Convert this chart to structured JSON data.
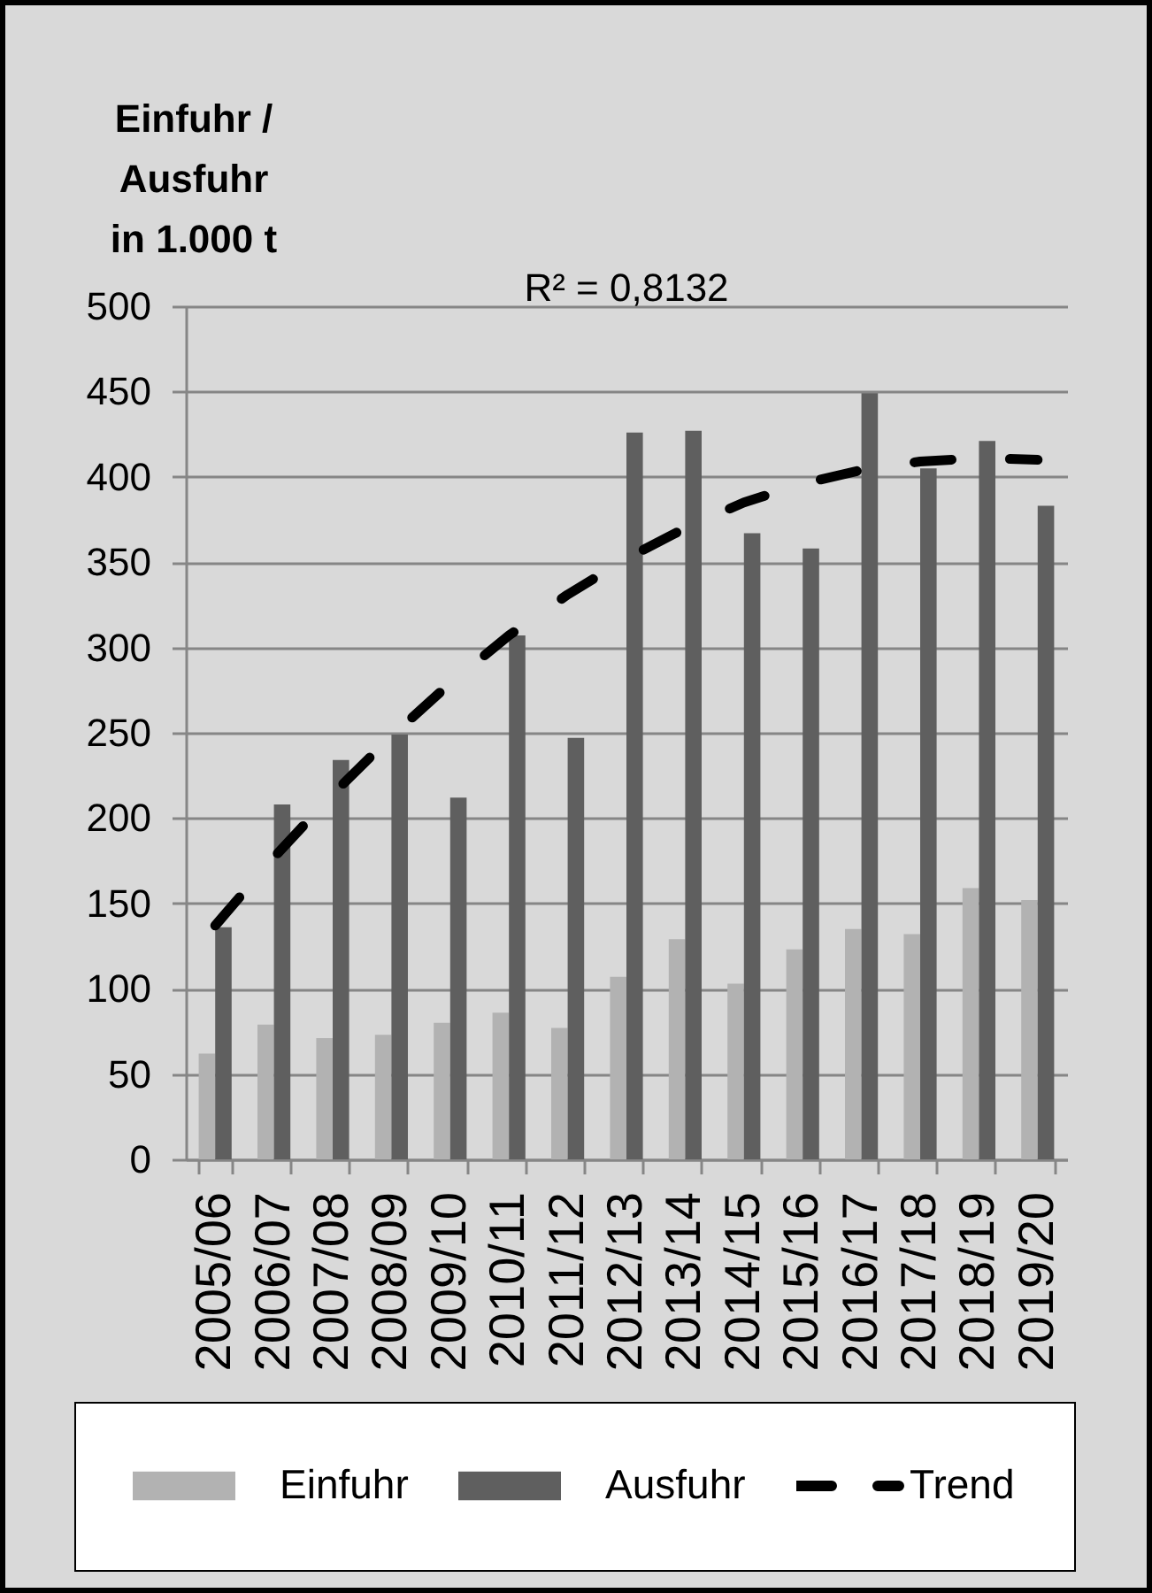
{
  "chart_data": {
    "type": "bar",
    "ylabel": "Einfuhr /\nAusfuhr\nin 1.000 t",
    "annotations": [
      "R² = 0,8132"
    ],
    "categories": [
      "2005/06",
      "2006/07",
      "2007/08",
      "2008/09",
      "2009/10",
      "2010/11",
      "2011/12",
      "2012/13",
      "2013/14",
      "2014/15",
      "2015/16",
      "2016/17",
      "2017/18",
      "2018/19",
      "2019/20"
    ],
    "series": [
      {
        "name": "Einfuhr",
        "color": "#b2b2b2",
        "values": [
          62,
          79,
          71,
          73,
          80,
          86,
          77,
          107,
          129,
          103,
          123,
          135,
          132,
          159,
          152
        ]
      },
      {
        "name": "Ausfuhr",
        "color": "#5f5f5f",
        "values": [
          136,
          208,
          234,
          249,
          212,
          307,
          247,
          426,
          427,
          367,
          358,
          449,
          405,
          421,
          383
        ]
      },
      {
        "name": "Trend",
        "type": "line",
        "color": "#000000",
        "line_style": "dashed",
        "values": [
          137,
          177,
          214,
          248,
          279,
          307,
          331,
          352,
          370,
          385,
          396,
          404,
          409,
          411,
          410
        ]
      }
    ],
    "ylim": [
      0,
      500
    ],
    "yticks": [
      0,
      50,
      100,
      150,
      200,
      250,
      300,
      350,
      400,
      450,
      500
    ],
    "grid": "y",
    "legend": "bottom"
  }
}
